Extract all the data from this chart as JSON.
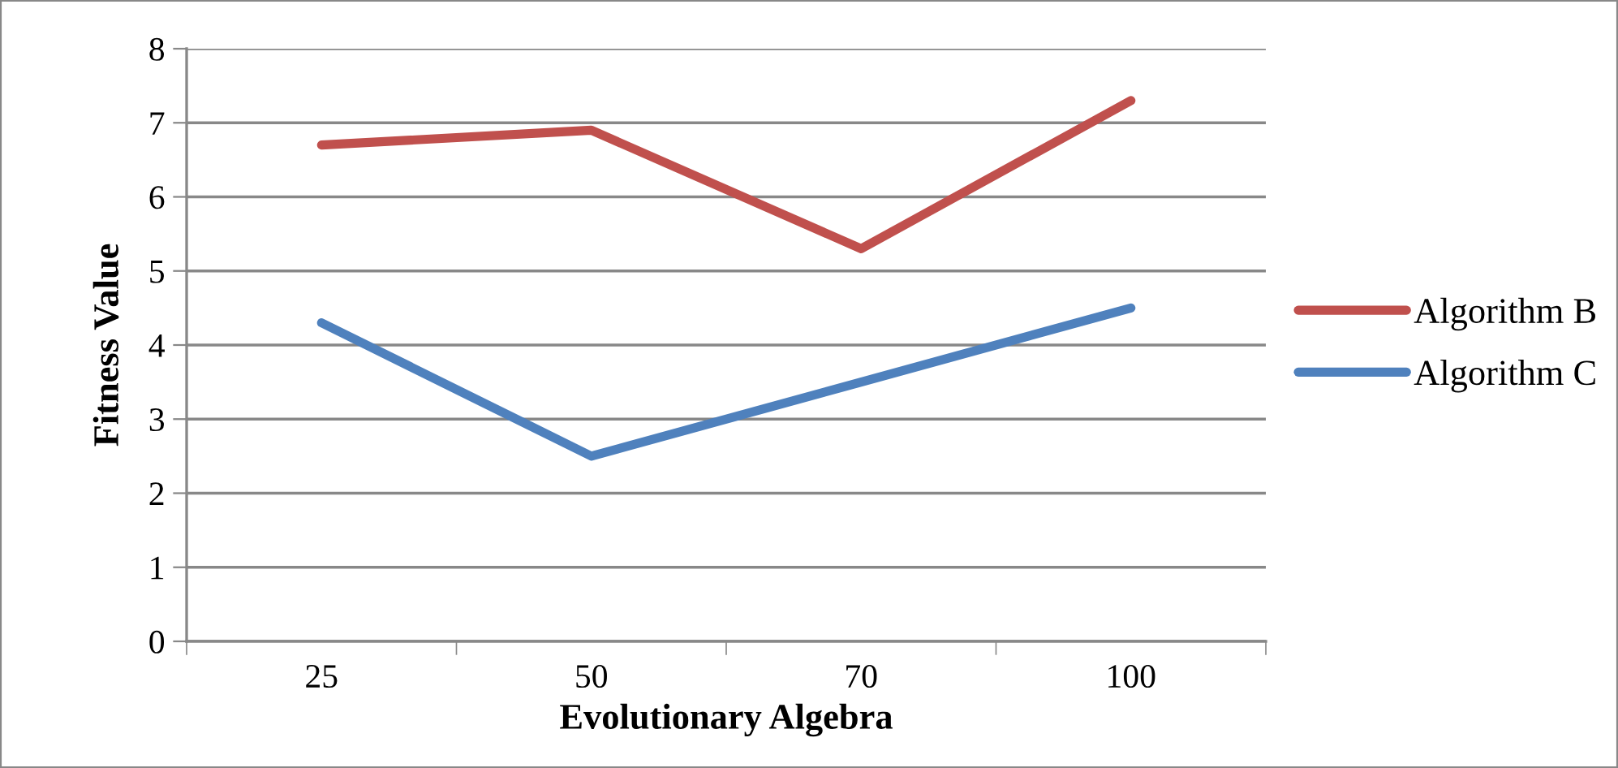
{
  "chart_data": {
    "type": "line",
    "xlabel": "Evolutionary Algebra",
    "ylabel": "Fitness Value",
    "categories": [
      "25",
      "50",
      "70",
      "100"
    ],
    "series": [
      {
        "name": "Algorithm B",
        "color": "#c0504d",
        "values": [
          6.7,
          6.9,
          5.3,
          7.3
        ]
      },
      {
        "name": "Algorithm C",
        "color": "#4f81bd",
        "values": [
          4.3,
          2.5,
          3.5,
          4.5
        ]
      }
    ],
    "ylim": [
      0,
      8
    ],
    "yticks": [
      0,
      1,
      2,
      3,
      4,
      5,
      6,
      7,
      8
    ],
    "grid": "y",
    "legend": "right",
    "marker": "none",
    "line_style": "solid"
  }
}
